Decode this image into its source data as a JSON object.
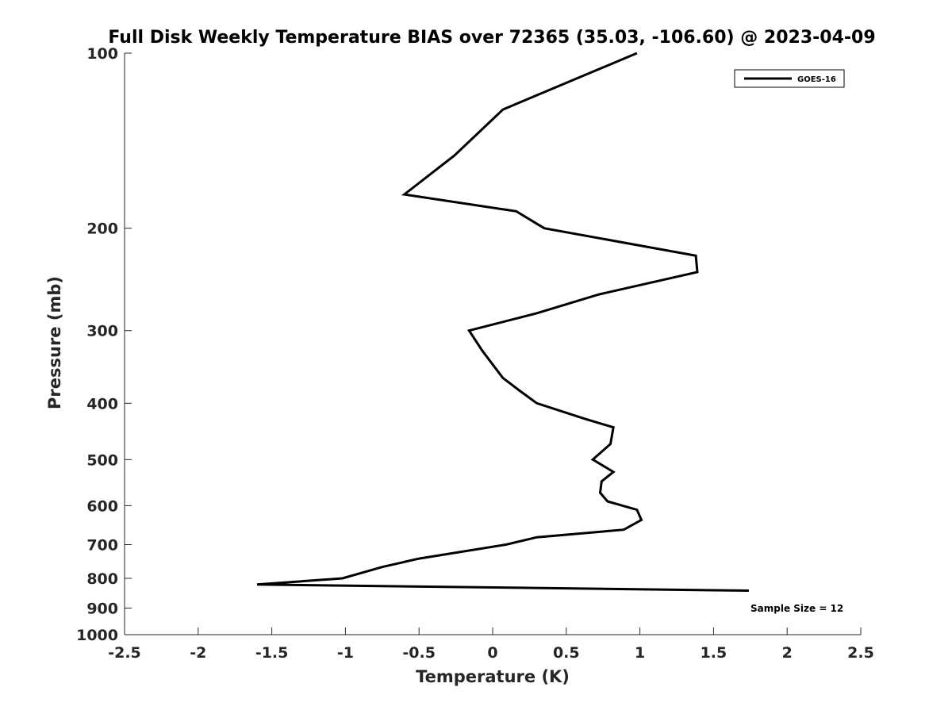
{
  "chart_data": {
    "type": "line",
    "title": "Full Disk Weekly Temperature BIAS over 72365 (35.03, -106.60) @ 2023-04-09",
    "xlabel": "Temperature (K)",
    "ylabel": "Pressure (mb)",
    "xlim": [
      -2.5,
      2.5
    ],
    "ylim": [
      100,
      1000
    ],
    "y_scale": "log",
    "y_reversed": true,
    "xticks": [
      -2.5,
      -2,
      -1.5,
      -1,
      -0.5,
      0,
      0.5,
      1,
      1.5,
      2,
      2.5
    ],
    "xtick_labels": [
      "-2.5",
      "-2",
      "-1.5",
      "-1",
      "-0.5",
      "0",
      "0.5",
      "1",
      "1.5",
      "2",
      "2.5"
    ],
    "yticks": [
      100,
      200,
      300,
      400,
      500,
      600,
      700,
      800,
      900,
      1000
    ],
    "ytick_labels": [
      "100",
      "200",
      "300",
      "400",
      "500",
      "600",
      "700",
      "800",
      "900",
      "1000"
    ],
    "grid": false,
    "legend_position": "top-right",
    "series": [
      {
        "name": "GOES-16",
        "color": "#000000",
        "points": [
          [
            0.98,
            100
          ],
          [
            0.07,
            125
          ],
          [
            -0.26,
            150
          ],
          [
            -0.6,
            175
          ],
          [
            0.16,
            187
          ],
          [
            0.35,
            200
          ],
          [
            1.38,
            223
          ],
          [
            1.39,
            238
          ],
          [
            0.72,
            260
          ],
          [
            0.3,
            280
          ],
          [
            -0.16,
            300
          ],
          [
            -0.07,
            325
          ],
          [
            0.07,
            362
          ],
          [
            0.18,
            380
          ],
          [
            0.3,
            400
          ],
          [
            0.62,
            425
          ],
          [
            0.82,
            440
          ],
          [
            0.8,
            470
          ],
          [
            0.68,
            500
          ],
          [
            0.82,
            525
          ],
          [
            0.74,
            545
          ],
          [
            0.73,
            570
          ],
          [
            0.78,
            590
          ],
          [
            0.98,
            610
          ],
          [
            1.01,
            635
          ],
          [
            0.89,
            660
          ],
          [
            0.3,
            680
          ],
          [
            0.09,
            700
          ],
          [
            -0.5,
            740
          ],
          [
            -0.75,
            765
          ],
          [
            -1.02,
            800
          ],
          [
            -1.6,
            820
          ],
          [
            1.74,
            840
          ]
        ]
      }
    ],
    "annotation": "Sample Size = 12"
  }
}
